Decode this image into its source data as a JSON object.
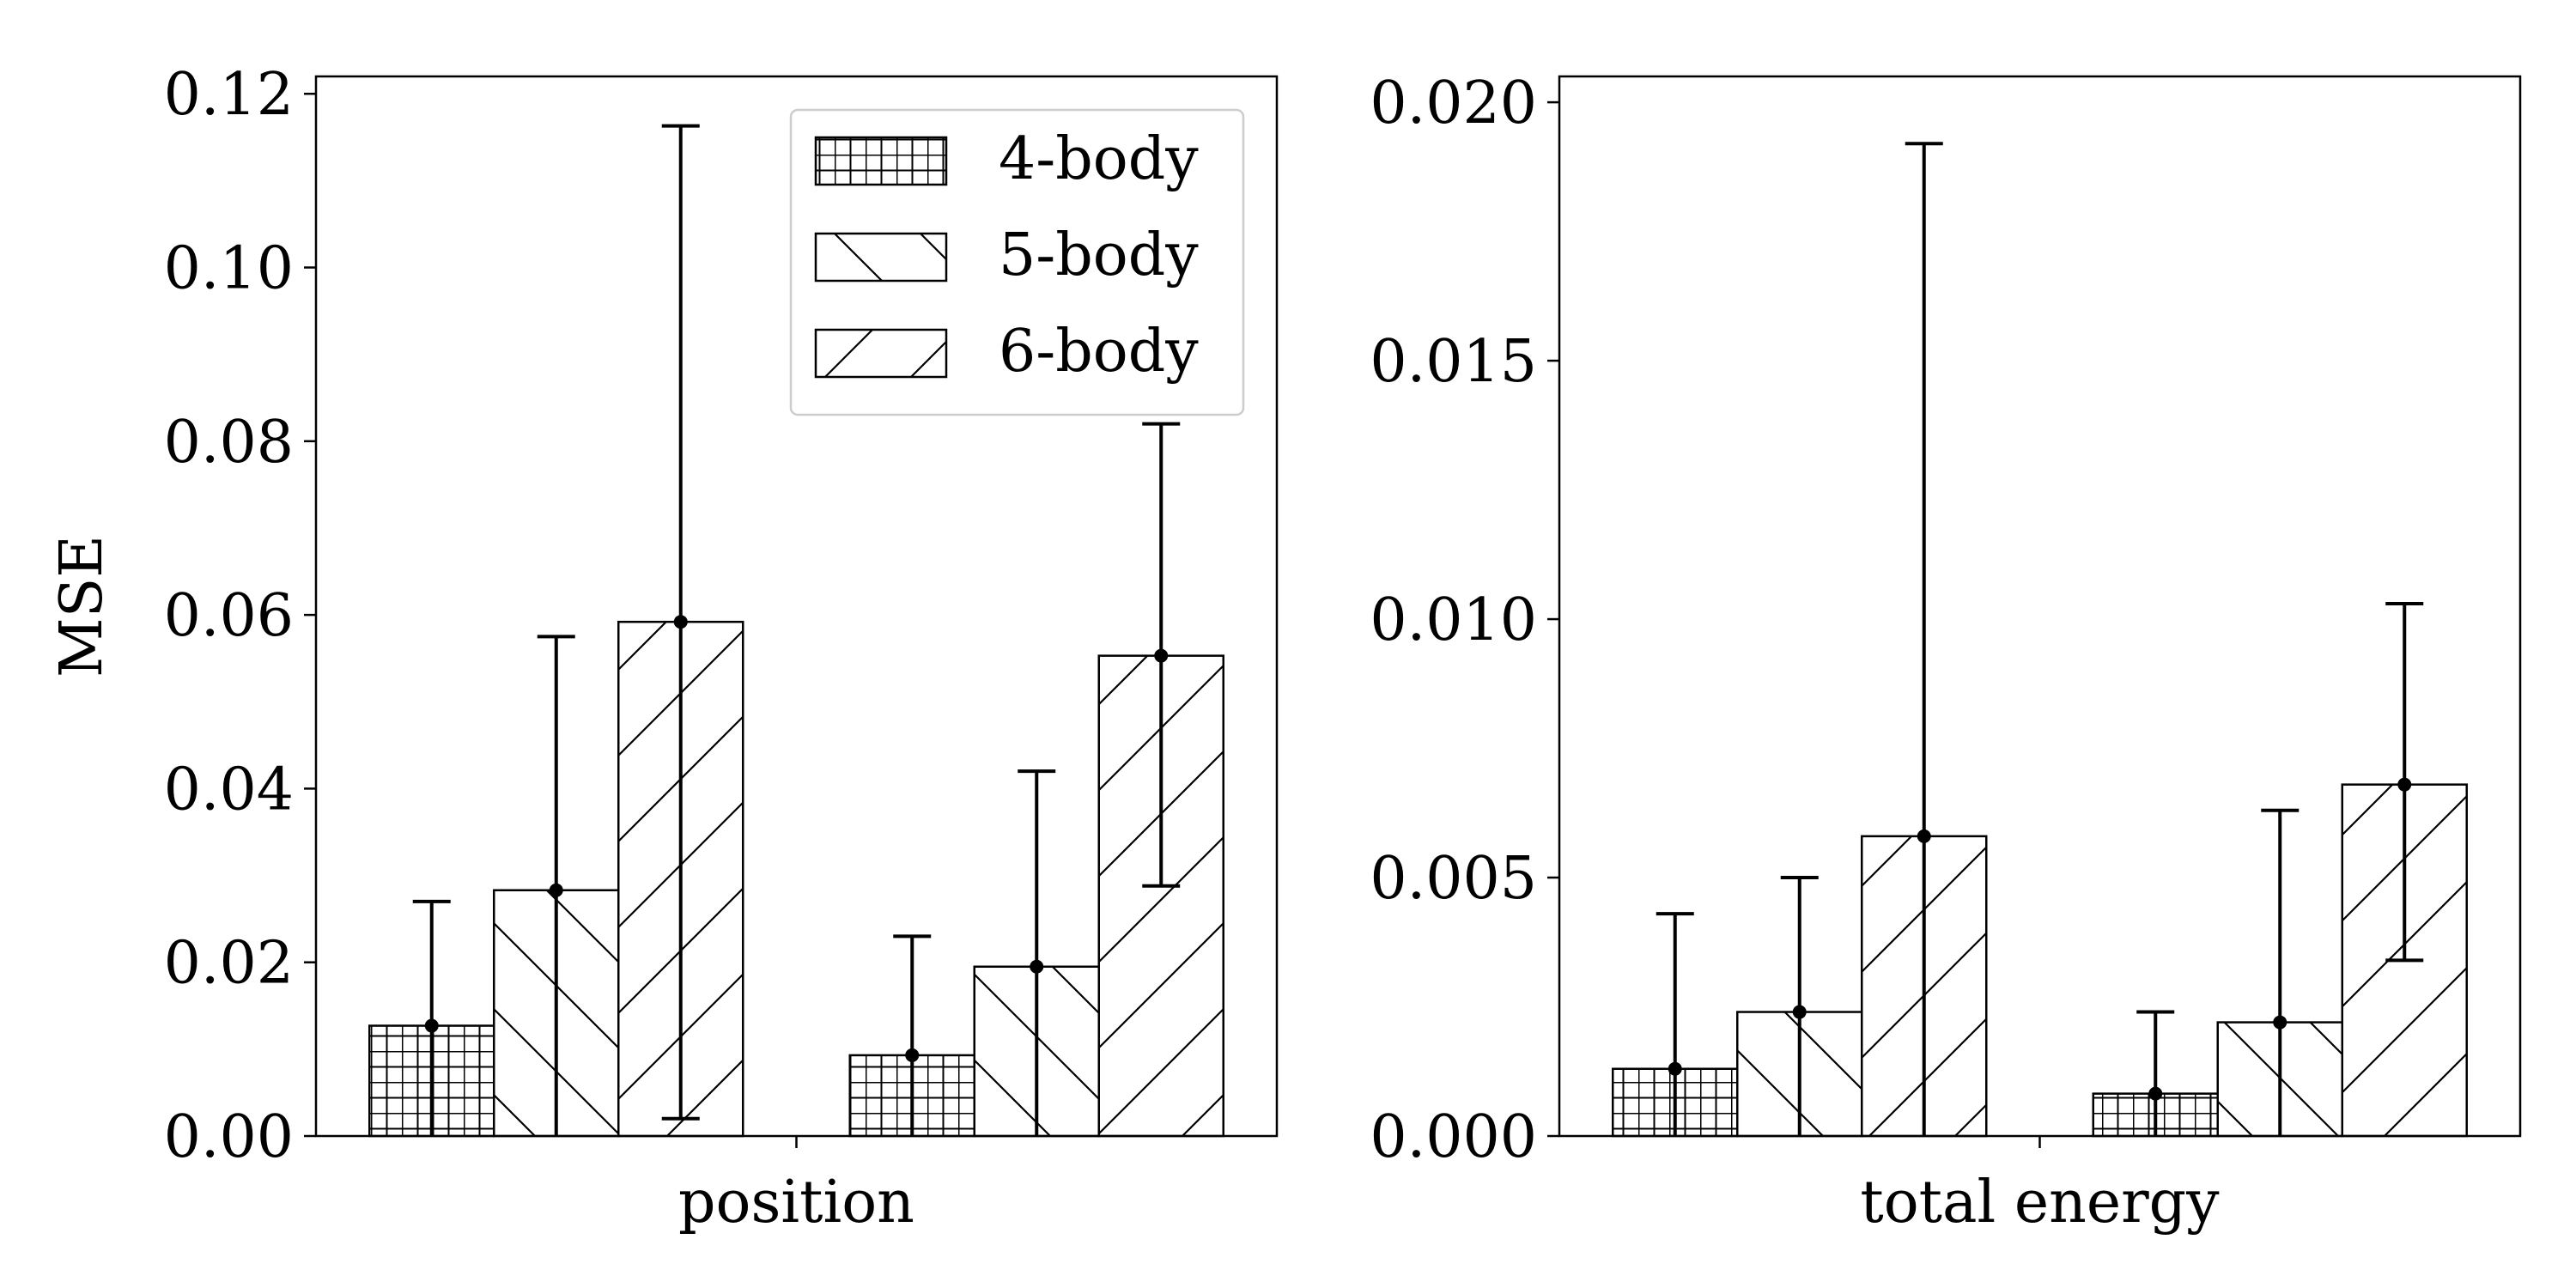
{
  "chart_data": [
    {
      "type": "bar",
      "ylabel": "MSE",
      "xlabel": "position",
      "ylim": [
        0,
        0.122
      ],
      "yticks": [
        "0.00",
        "0.02",
        "0.04",
        "0.06",
        "0.08",
        "0.10",
        "0.12"
      ],
      "ytick_values": [
        0,
        0.02,
        0.04,
        0.06,
        0.08,
        0.1,
        0.12
      ],
      "groups": 2,
      "legend": {
        "placement": "top-right",
        "entries": [
          "4-body",
          "5-body",
          "6-body"
        ]
      },
      "series": [
        {
          "name": "4-body",
          "hatch": "grid",
          "values": [
            0.0127,
            0.0093
          ],
          "err_low": [
            0,
            0
          ],
          "err_high": [
            0.027,
            0.023
          ]
        },
        {
          "name": "5-body",
          "hatch": "backslash",
          "values": [
            0.0283,
            0.0195
          ],
          "err_low": [
            0,
            0
          ],
          "err_high": [
            0.0575,
            0.042
          ]
        },
        {
          "name": "6-body",
          "hatch": "slash",
          "values": [
            0.0592,
            0.0553
          ],
          "err_low": [
            0.002,
            0.0288
          ],
          "err_high": [
            0.1163,
            0.082
          ]
        }
      ]
    },
    {
      "type": "bar",
      "ylabel": "",
      "xlabel": "total energy",
      "ylim": [
        0,
        0.0205
      ],
      "yticks": [
        "0.000",
        "0.005",
        "0.010",
        "0.015",
        "0.020"
      ],
      "ytick_values": [
        0,
        0.005,
        0.01,
        0.015,
        0.02
      ],
      "groups": 2,
      "series": [
        {
          "name": "4-body",
          "hatch": "grid",
          "values": [
            0.0013,
            0.00082
          ],
          "err_low": [
            0,
            0
          ],
          "err_high": [
            0.0043,
            0.0024
          ]
        },
        {
          "name": "5-body",
          "hatch": "backslash",
          "values": [
            0.0024,
            0.0022
          ],
          "err_low": [
            0,
            0
          ],
          "err_high": [
            0.005,
            0.0063
          ]
        },
        {
          "name": "6-body",
          "hatch": "slash",
          "values": [
            0.0058,
            0.0068
          ],
          "err_low": [
            0,
            0.0034
          ],
          "err_high": [
            0.0192,
            0.0103
          ]
        }
      ]
    }
  ]
}
